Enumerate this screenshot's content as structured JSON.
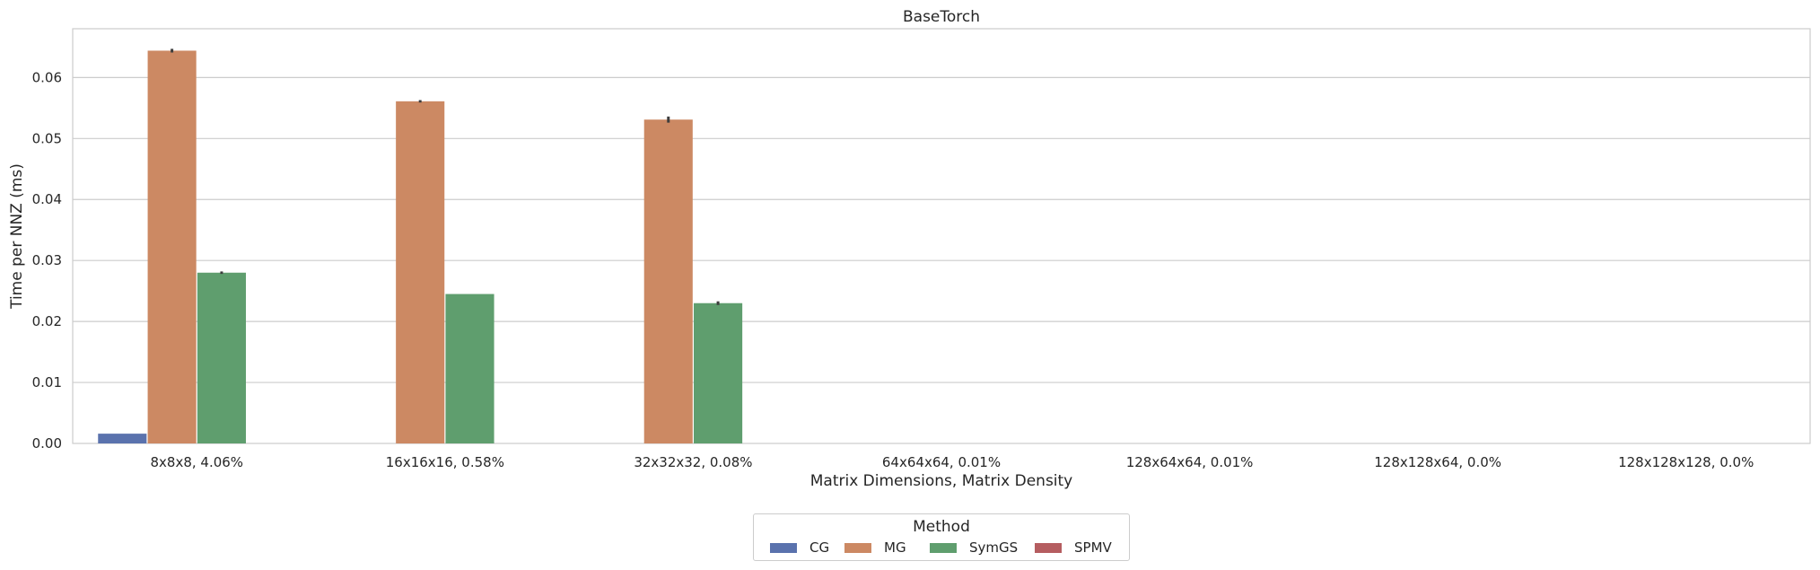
{
  "chart_data": {
    "type": "bar",
    "title": "BaseTorch",
    "xlabel": "Matrix Dimensions, Matrix Density",
    "ylabel": "Time per NNZ (ms)",
    "ylim": [
      0,
      0.068
    ],
    "yticks": [
      "0.00",
      "0.01",
      "0.02",
      "0.03",
      "0.04",
      "0.05",
      "0.06"
    ],
    "grid": true,
    "legend_title": "Method",
    "legend_position": "bottom-center",
    "categories": [
      "8x8x8, 4.06%",
      "16x16x16, 0.58%",
      "32x32x32, 0.08%",
      "64x64x64, 0.01%",
      "128x64x64, 0.01%",
      "128x128x64, 0.0%",
      "128x128x128, 0.0%"
    ],
    "series": [
      {
        "name": "CG",
        "color": "#5a72ad",
        "values": [
          0.0016,
          0.0,
          0.0,
          0.0,
          0.0,
          0.0,
          0.0
        ],
        "errors": [
          0,
          0,
          0,
          0,
          0,
          0,
          0
        ]
      },
      {
        "name": "MG",
        "color": "#cc8963",
        "values": [
          0.0644,
          0.0561,
          0.0531,
          0.0,
          0.0,
          0.0,
          0.0
        ],
        "errors": [
          0.0003,
          0.0002,
          0.0005,
          0,
          0,
          0,
          0
        ]
      },
      {
        "name": "SymGS",
        "color": "#5f9e6e",
        "values": [
          0.028,
          0.0245,
          0.023,
          0.0,
          0.0,
          0.0,
          0.0
        ],
        "errors": [
          0.0002,
          0,
          0.0003,
          0,
          0,
          0,
          0
        ]
      },
      {
        "name": "SPMV",
        "color": "#b55d60",
        "values": [
          0.0,
          0.0,
          0.0,
          0.0,
          0.0,
          0.0,
          0.0
        ],
        "errors": [
          0,
          0,
          0,
          0,
          0,
          0,
          0
        ]
      }
    ]
  }
}
